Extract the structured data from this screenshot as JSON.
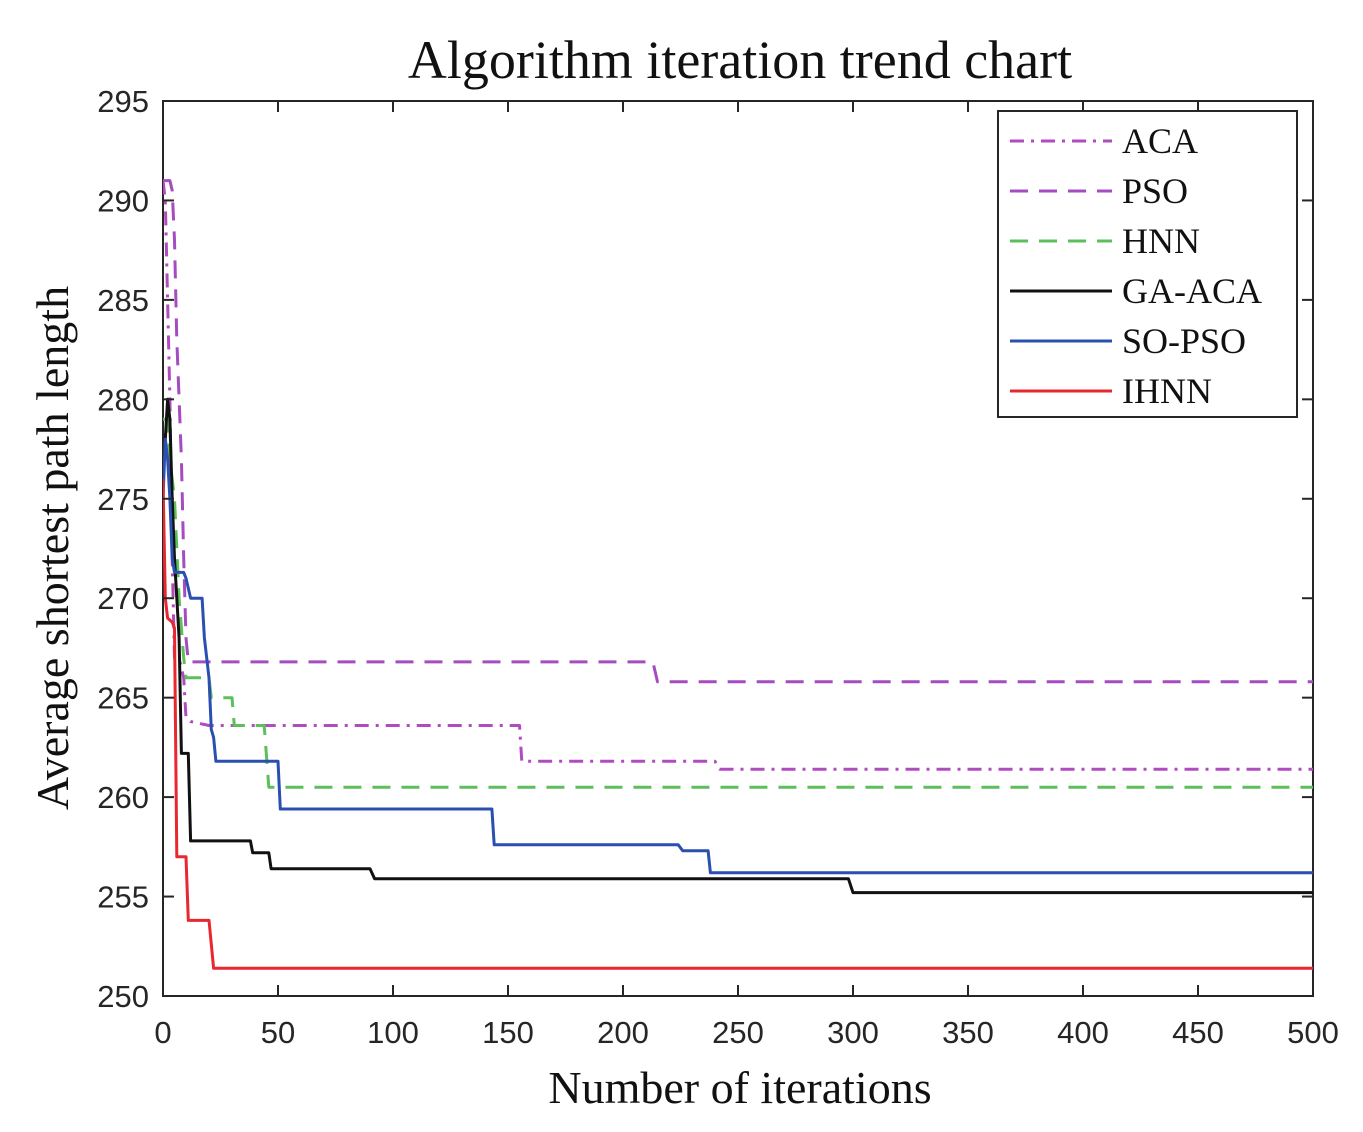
{
  "chart_data": {
    "type": "line",
    "title": "Algorithm iteration trend chart",
    "xlabel": "Number of iterations",
    "ylabel": "Average shortest path length",
    "xlim": [
      0,
      500
    ],
    "ylim": [
      250,
      295
    ],
    "xticks": [
      0,
      50,
      100,
      150,
      200,
      250,
      300,
      350,
      400,
      450,
      500
    ],
    "yticks": [
      250,
      255,
      260,
      265,
      270,
      275,
      280,
      285,
      290,
      295
    ],
    "grid": false,
    "legend_position": "top-right",
    "series": [
      {
        "name": "ACA",
        "color": "#b04cbf",
        "dash": "dashdot",
        "points": [
          [
            0,
            291
          ],
          [
            1,
            290
          ],
          [
            2,
            285
          ],
          [
            3,
            280
          ],
          [
            4,
            272
          ],
          [
            5,
            267
          ],
          [
            7,
            267
          ],
          [
            9,
            266
          ],
          [
            10,
            264
          ],
          [
            12,
            263.8
          ],
          [
            20,
            263.6
          ],
          [
            155,
            263.6
          ],
          [
            156,
            261.8
          ],
          [
            240,
            261.8
          ],
          [
            242,
            261.4
          ],
          [
            500,
            261.4
          ]
        ]
      },
      {
        "name": "PSO",
        "color": "#a44cc0",
        "dash": "dash",
        "points": [
          [
            0,
            291
          ],
          [
            3,
            291
          ],
          [
            4,
            290.5
          ],
          [
            5,
            288
          ],
          [
            6,
            283
          ],
          [
            8,
            277
          ],
          [
            9,
            272
          ],
          [
            10,
            268
          ],
          [
            11,
            266.8
          ],
          [
            213,
            266.8
          ],
          [
            215,
            265.8
          ],
          [
            500,
            265.8
          ]
        ]
      },
      {
        "name": "HNN",
        "color": "#5cbf5c",
        "dash": "dash",
        "points": [
          [
            0,
            279
          ],
          [
            2,
            279
          ],
          [
            3,
            277
          ],
          [
            5,
            275
          ],
          [
            7,
            270
          ],
          [
            9,
            267
          ],
          [
            10,
            266
          ],
          [
            20,
            266
          ],
          [
            21,
            265
          ],
          [
            30,
            265
          ],
          [
            31,
            263.6
          ],
          [
            44,
            263.6
          ],
          [
            46,
            260.5
          ],
          [
            500,
            260.5
          ]
        ]
      },
      {
        "name": "GA-ACA",
        "color": "#111111",
        "dash": "solid",
        "points": [
          [
            0,
            276
          ],
          [
            1,
            278
          ],
          [
            2,
            280
          ],
          [
            3,
            279
          ],
          [
            4,
            275
          ],
          [
            5,
            272
          ],
          [
            6,
            270
          ],
          [
            7,
            268
          ],
          [
            8,
            262.2
          ],
          [
            11,
            262.2
          ],
          [
            12,
            257.8
          ],
          [
            38,
            257.8
          ],
          [
            39,
            257.2
          ],
          [
            46,
            257.2
          ],
          [
            47,
            256.4
          ],
          [
            90,
            256.4
          ],
          [
            92,
            255.9
          ],
          [
            298,
            255.9
          ],
          [
            300,
            255.2
          ],
          [
            500,
            255.2
          ]
        ]
      },
      {
        "name": "SO-PSO",
        "color": "#2a4fb0",
        "dash": "solid",
        "points": [
          [
            0,
            275
          ],
          [
            1,
            278
          ],
          [
            2,
            277
          ],
          [
            3,
            275
          ],
          [
            4,
            272
          ],
          [
            5,
            271.3
          ],
          [
            9,
            271.3
          ],
          [
            10,
            271
          ],
          [
            12,
            270
          ],
          [
            17,
            270
          ],
          [
            18,
            268
          ],
          [
            20,
            266
          ],
          [
            21,
            263.4
          ],
          [
            22,
            263
          ],
          [
            23,
            261.8
          ],
          [
            50,
            261.8
          ],
          [
            51,
            259.4
          ],
          [
            143,
            259.4
          ],
          [
            144,
            257.6
          ],
          [
            224,
            257.6
          ],
          [
            226,
            257.3
          ],
          [
            237,
            257.3
          ],
          [
            238,
            256.2
          ],
          [
            500,
            256.2
          ]
        ]
      },
      {
        "name": "IHNN",
        "color": "#e8282e",
        "dash": "solid",
        "points": [
          [
            0,
            276
          ],
          [
            1,
            270
          ],
          [
            2,
            269
          ],
          [
            4,
            268.8
          ],
          [
            5,
            268.5
          ],
          [
            6,
            257
          ],
          [
            10,
            257
          ],
          [
            11,
            253.8
          ],
          [
            20,
            253.8
          ],
          [
            22,
            251.4
          ],
          [
            500,
            251.4
          ]
        ]
      }
    ]
  }
}
